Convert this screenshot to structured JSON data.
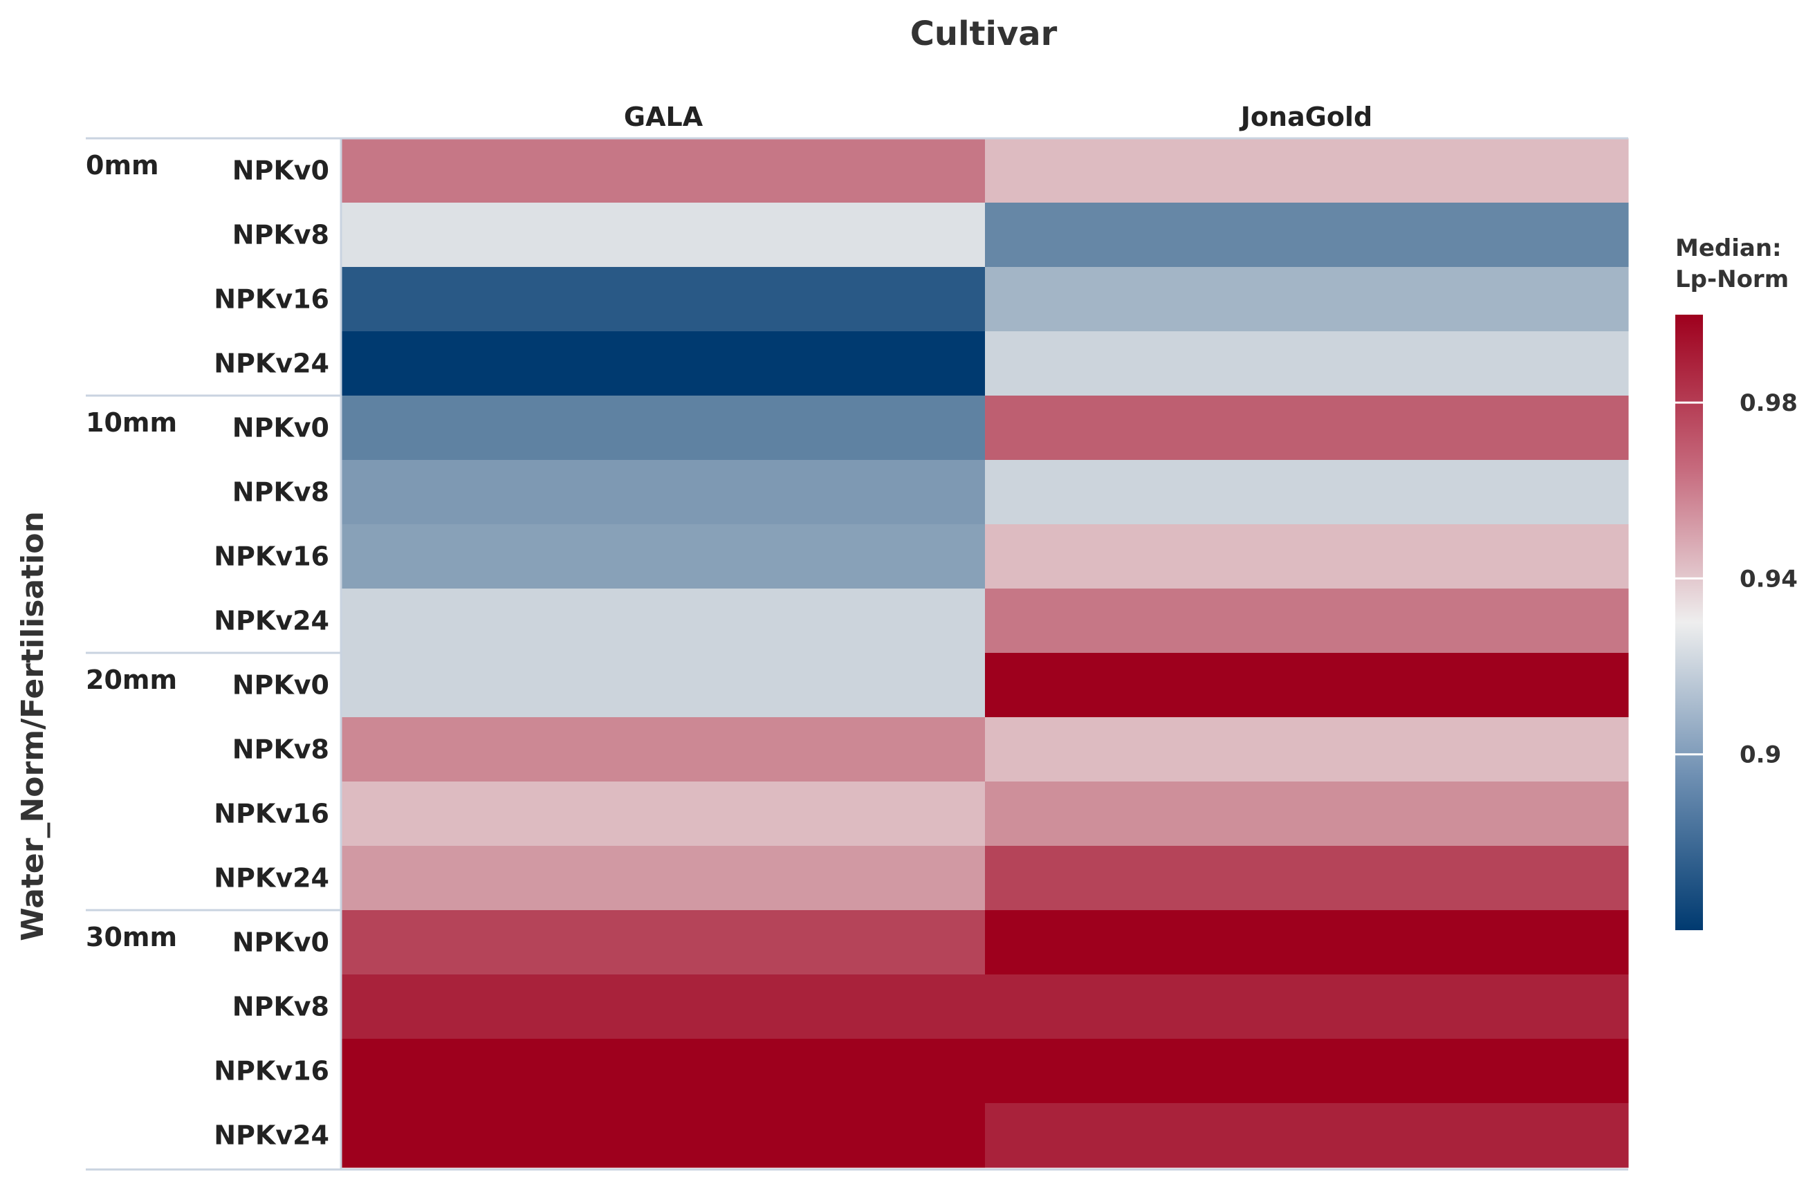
{
  "chart_data": {
    "type": "heatmap",
    "title": "Cultivar",
    "ylabel": "Water_Norm/Fertilisation",
    "columns": [
      "GALA",
      "JonaGold"
    ],
    "groups": [
      {
        "label": "0mm",
        "rows": [
          "NPKv0",
          "NPKv8",
          "NPKv16",
          "NPKv24"
        ]
      },
      {
        "label": "10mm",
        "rows": [
          "NPKv0",
          "NPKv8",
          "NPKv16",
          "NPKv24"
        ]
      },
      {
        "label": "20mm",
        "rows": [
          "NPKv0",
          "NPKv8",
          "NPKv16",
          "NPKv24"
        ]
      },
      {
        "label": "30mm",
        "rows": [
          "NPKv0",
          "NPKv8",
          "NPKv16",
          "NPKv24"
        ]
      }
    ],
    "values": [
      [
        0.965,
        0.945
      ],
      [
        0.925,
        0.89
      ],
      [
        0.872,
        0.908
      ],
      [
        0.855,
        0.92
      ],
      [
        0.888,
        0.972
      ],
      [
        0.897,
        0.92
      ],
      [
        0.9,
        0.945
      ],
      [
        0.92,
        0.965
      ],
      [
        0.92,
        1.0
      ],
      [
        0.96,
        0.945
      ],
      [
        0.945,
        0.958
      ],
      [
        0.955,
        0.98
      ],
      [
        0.98,
        1.0
      ],
      [
        0.99,
        0.99
      ],
      [
        1.0,
        1.0
      ],
      [
        1.0,
        0.99
      ]
    ],
    "legend": {
      "title_line1": "Median:",
      "title_line2": "Lp-Norm",
      "ticks": [
        0.98,
        0.94,
        0.9
      ],
      "tick_labels": [
        "0.98",
        "0.94",
        "0.9"
      ],
      "range": [
        0.86,
        1.0
      ],
      "position": "right"
    },
    "colors": {
      "low": "#003A70",
      "mid": "#EEEEEE",
      "high": "#9E001D"
    }
  }
}
